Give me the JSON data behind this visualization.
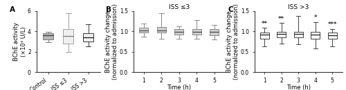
{
  "panel_A": {
    "label": "A",
    "ylabel": "BChE activity\n(×10³ U/L)",
    "ylim": [
      0,
      6
    ],
    "yticks": [
      0,
      2,
      4,
      6
    ],
    "categories": [
      "Control",
      "ISS ≤3",
      "ISS >3"
    ],
    "box_colors": [
      "#b8b8b8",
      "#f0f0f0",
      "#f0f0f0"
    ],
    "box_edge_colors": [
      "#787878",
      "#a0a0a0",
      "#383838"
    ],
    "median_colors": [
      "#383838",
      "#787878",
      "#181818"
    ],
    "boxes": [
      {
        "med": 3.6,
        "q1": 3.2,
        "q3": 3.8,
        "whislo": 2.9,
        "whishi": 3.95
      },
      {
        "med": 3.5,
        "q1": 2.8,
        "q3": 4.2,
        "whislo": 2.0,
        "whishi": 5.8
      },
      {
        "med": 3.4,
        "q1": 3.0,
        "q3": 3.8,
        "whislo": 2.5,
        "whishi": 4.7
      }
    ]
  },
  "panel_B": {
    "label": "B",
    "title": "ISS ≤3",
    "ylabel": "BChE activity change\n(normalized to admission)",
    "xlabel": "Time (h)",
    "ylim": [
      0,
      1.5
    ],
    "yticks": [
      0,
      0.5,
      1.0,
      1.5
    ],
    "timepoints": [
      1,
      2,
      3,
      4,
      5
    ],
    "box_color": "#d0d0d0",
    "box_edge_color": "#888888",
    "median_color": "#484848",
    "boxes": [
      {
        "med": 1.02,
        "q1": 0.96,
        "q3": 1.08,
        "whislo": 0.86,
        "whishi": 1.18
      },
      {
        "med": 1.02,
        "q1": 0.96,
        "q3": 1.1,
        "whislo": 0.82,
        "whishi": 1.45
      },
      {
        "med": 0.98,
        "q1": 0.92,
        "q3": 1.05,
        "whislo": 0.82,
        "whishi": 1.12
      },
      {
        "med": 0.98,
        "q1": 0.92,
        "q3": 1.05,
        "whislo": 0.82,
        "whishi": 1.28
      },
      {
        "med": 0.98,
        "q1": 0.9,
        "q3": 1.05,
        "whislo": 0.8,
        "whishi": 1.15
      }
    ]
  },
  "panel_C": {
    "label": "C",
    "title": "ISS >3",
    "ylabel": "BChE activity change\n(normalized to admission)",
    "xlabel": "Time (h)",
    "ylim": [
      0,
      1.5
    ],
    "yticks": [
      0,
      0.5,
      1.0,
      1.5
    ],
    "timepoints": [
      1,
      2,
      3,
      4,
      5
    ],
    "box_color": "#f8f8f8",
    "box_edge_color": "#404040",
    "median_color": "#202020",
    "boxes": [
      {
        "med": 0.92,
        "q1": 0.82,
        "q3": 0.97,
        "whislo": 0.62,
        "whishi": 1.08
      },
      {
        "med": 0.93,
        "q1": 0.85,
        "q3": 0.98,
        "whislo": 0.7,
        "whishi": 1.2
      },
      {
        "med": 0.93,
        "q1": 0.84,
        "q3": 0.99,
        "whislo": 0.68,
        "whishi": 1.38
      },
      {
        "med": 0.92,
        "q1": 0.82,
        "q3": 0.99,
        "whislo": 0.58,
        "whishi": 1.22
      },
      {
        "med": 0.9,
        "q1": 0.82,
        "q3": 0.96,
        "whislo": 0.62,
        "whishi": 1.05
      }
    ],
    "significance": [
      "**",
      "**",
      "",
      "*",
      "***"
    ]
  },
  "figure_bg": "#ffffff",
  "label_fontsize": 6.0,
  "tick_fontsize": 5.5,
  "title_fontsize": 6.5,
  "sig_fontsize": 6.0,
  "panel_label_fontsize": 7.5
}
